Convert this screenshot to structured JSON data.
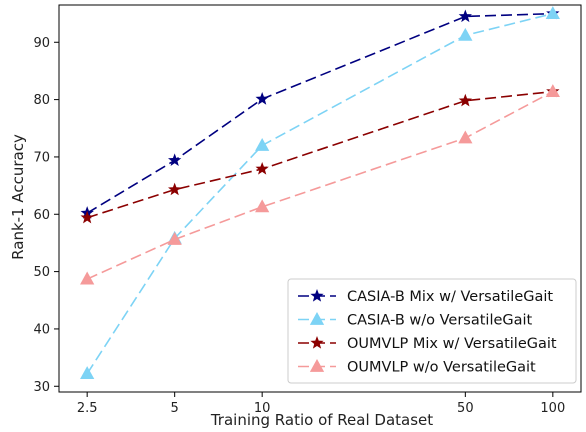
{
  "chart_data": {
    "type": "line",
    "title": "",
    "xlabel": "Training Ratio of Real Dataset",
    "ylabel": "Rank-1 Accuracy",
    "x_categories": [
      "2.5",
      "5",
      "10",
      "50",
      "100"
    ],
    "x_values": [
      2.5,
      5,
      10,
      50,
      100
    ],
    "x_scale": "log",
    "xlim": [
      2.0,
      125
    ],
    "y_ticks": [
      30,
      40,
      50,
      60,
      70,
      80,
      90
    ],
    "ylim": [
      29,
      96.5
    ],
    "grid": false,
    "legend_position": "bottom-right",
    "series": [
      {
        "name": "CASIA-B Mix w/ VersatileGait",
        "color": "#000080",
        "marker": "star",
        "values": [
          60.2,
          69.4,
          80.1,
          94.5,
          95.0
        ]
      },
      {
        "name": "CASIA-B w/o VersatileGait",
        "color": "#7dd3f5",
        "marker": "triangle",
        "values": [
          32.2,
          55.8,
          72.0,
          91.2,
          95.0
        ]
      },
      {
        "name": "OUMVLP Mix w/ VersatileGait",
        "color": "#8b0000",
        "marker": "star",
        "values": [
          59.4,
          64.3,
          67.9,
          79.8,
          81.4
        ]
      },
      {
        "name": "OUMVLP w/o VersatileGait",
        "color": "#f59a9a",
        "marker": "triangle",
        "values": [
          48.7,
          55.6,
          61.3,
          73.3,
          81.4
        ]
      }
    ]
  }
}
